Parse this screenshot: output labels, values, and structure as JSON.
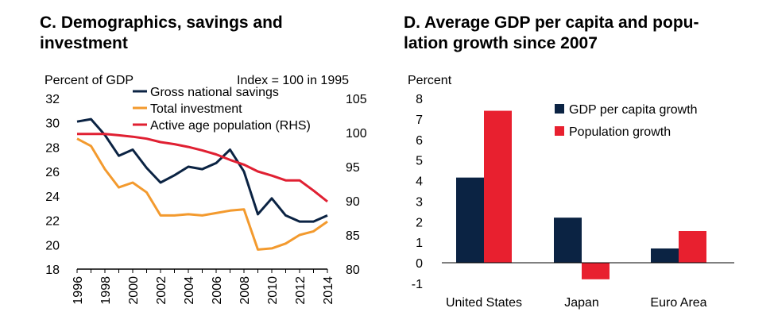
{
  "colors": {
    "savings": "#0b2343",
    "investment": "#f39a2e",
    "population": "#e02032",
    "gdp_bar": "#0b2343",
    "pop_bar": "#e8202f"
  },
  "chart_data": [
    {
      "type": "line",
      "title": "C. Demographics, savings and investment",
      "ylabel": "Percent of GDP",
      "ylabel_right": "Index = 100 in 1995",
      "ylim": [
        18,
        32
      ],
      "yticks": [
        "32",
        "30",
        "28",
        "26",
        "24",
        "22",
        "20",
        "18"
      ],
      "ylim_right": [
        80,
        105
      ],
      "yticks_right": [
        "105",
        "100",
        "95",
        "90",
        "85",
        "80"
      ],
      "xlim": [
        1996,
        2014
      ],
      "xticks": [
        "1996",
        "1998",
        "2000",
        "2002",
        "2004",
        "2006",
        "2008",
        "2010",
        "2012",
        "2014"
      ],
      "grid": false,
      "legend_position": "top-right",
      "series": [
        {
          "name": "Gross national savings",
          "axis": "left",
          "x": [
            1996,
            1997,
            1998,
            1999,
            2000,
            2001,
            2002,
            2003,
            2004,
            2005,
            2006,
            2007,
            2008,
            2009,
            2010,
            2011,
            2012,
            2013,
            2014
          ],
          "values": [
            30.1,
            30.3,
            29.0,
            27.3,
            27.8,
            26.3,
            25.1,
            25.7,
            26.4,
            26.2,
            26.7,
            27.8,
            26.0,
            22.5,
            23.8,
            22.4,
            21.9,
            21.9,
            22.4
          ]
        },
        {
          "name": "Total investment",
          "axis": "left",
          "x": [
            1996,
            1997,
            1998,
            1999,
            2000,
            2001,
            2002,
            2003,
            2004,
            2005,
            2006,
            2007,
            2008,
            2009,
            2010,
            2011,
            2012,
            2013,
            2014
          ],
          "values": [
            28.7,
            28.1,
            26.2,
            24.7,
            25.1,
            24.3,
            22.4,
            22.4,
            22.5,
            22.4,
            22.6,
            22.8,
            22.9,
            19.6,
            19.7,
            20.1,
            20.8,
            21.1,
            21.9
          ]
        },
        {
          "name": "Active age population (RHS)",
          "axis": "right",
          "x": [
            1996,
            1997,
            1998,
            1999,
            2000,
            2001,
            2002,
            2003,
            2004,
            2005,
            2006,
            2007,
            2008,
            2009,
            2010,
            2011,
            2012,
            2013,
            2014
          ],
          "values": [
            99.8,
            99.8,
            99.8,
            99.6,
            99.4,
            99.1,
            98.6,
            98.3,
            97.9,
            97.4,
            96.8,
            96.0,
            95.3,
            94.3,
            93.7,
            93.0,
            93.0,
            91.5,
            89.9
          ]
        }
      ]
    },
    {
      "type": "bar",
      "title": "D. Average GDP per capita and population growth since 2007",
      "title_lines": [
        "D. Average GDP per capita and popu-",
        "lation growth since 2007"
      ],
      "ylabel": "Percent",
      "ylim": [
        -1,
        8
      ],
      "yticks": [
        "8",
        "7",
        "6",
        "5",
        "4",
        "3",
        "2",
        "1",
        "0",
        "-1"
      ],
      "categories": [
        "United States",
        "Japan",
        "Euro Area"
      ],
      "legend_position": "top-right",
      "series": [
        {
          "name": "GDP per capita growth",
          "values": [
            4.15,
            2.2,
            0.7
          ]
        },
        {
          "name": "Population growth",
          "values": [
            7.4,
            -0.8,
            1.55
          ]
        }
      ]
    }
  ]
}
